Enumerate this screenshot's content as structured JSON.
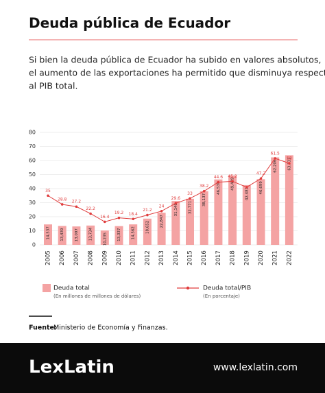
{
  "chart_data": {
    "type": "bar_line",
    "title": "Deuda pública de Ecuador",
    "subtitle": [
      "Si bien la deuda pública de Ecuador ha subido en valores absolutos,",
      "el aumento de las exportaciones ha permitido que disminuya respecto",
      "al PIB total."
    ],
    "categories": [
      "2005",
      "2006",
      "2007",
      "2008",
      "2009",
      "2010",
      "2011",
      "2012",
      "2013",
      "2014",
      "2015",
      "2016",
      "2017",
      "2018",
      "2019",
      "2020",
      "2021",
      "2022"
    ],
    "series": [
      {
        "name": "Deuda total",
        "note": "(En millones de millones de dólares)",
        "type": "bar",
        "color": "#f4a3a3",
        "values": [
          14.537,
          13.439,
          13.097,
          13.734,
          10.235,
          13.337,
          14.562,
          18.652,
          22.847,
          31.14,
          32.771,
          38.137,
          46.538,
          49.429,
          42.481,
          46.699,
          62.206,
          63.732
        ],
        "value_labels": [
          "14,537",
          "13,439",
          "13,097",
          "13,734",
          "10,235",
          "13,337",
          "14,562",
          "18,652",
          "22,847",
          "31,140",
          "32,771",
          "38,137",
          "46,538",
          "49,429",
          "42,481",
          "46,699",
          "62,206",
          "63,732"
        ]
      },
      {
        "name": "Deuda total/PIB",
        "note": "(En porcentaje)",
        "type": "line",
        "color": "#e03c3c",
        "values": [
          35,
          28.8,
          27.2,
          22.2,
          16.4,
          19.2,
          18.4,
          21.2,
          24,
          29.6,
          33,
          38.2,
          44.6,
          45.2,
          41,
          47.2,
          61.5,
          58
        ],
        "value_labels": [
          "35",
          "28.8",
          "27.2",
          "22.2",
          "16.4",
          "19.2",
          "18.4",
          "21.2",
          "24",
          "29.6",
          "33",
          "38.2",
          "44.6",
          "45.2",
          null,
          "47.2",
          "61.5",
          "58"
        ]
      }
    ],
    "ylim": [
      0,
      80
    ],
    "yticks": [
      0,
      10,
      20,
      30,
      40,
      50,
      60,
      70,
      80
    ],
    "grid": true,
    "source_label": "Fuente:",
    "source": "Ministerio de Economía y Finanzas."
  },
  "footer": {
    "brand": "LexLatin",
    "url": "www.lexlatin.com"
  }
}
